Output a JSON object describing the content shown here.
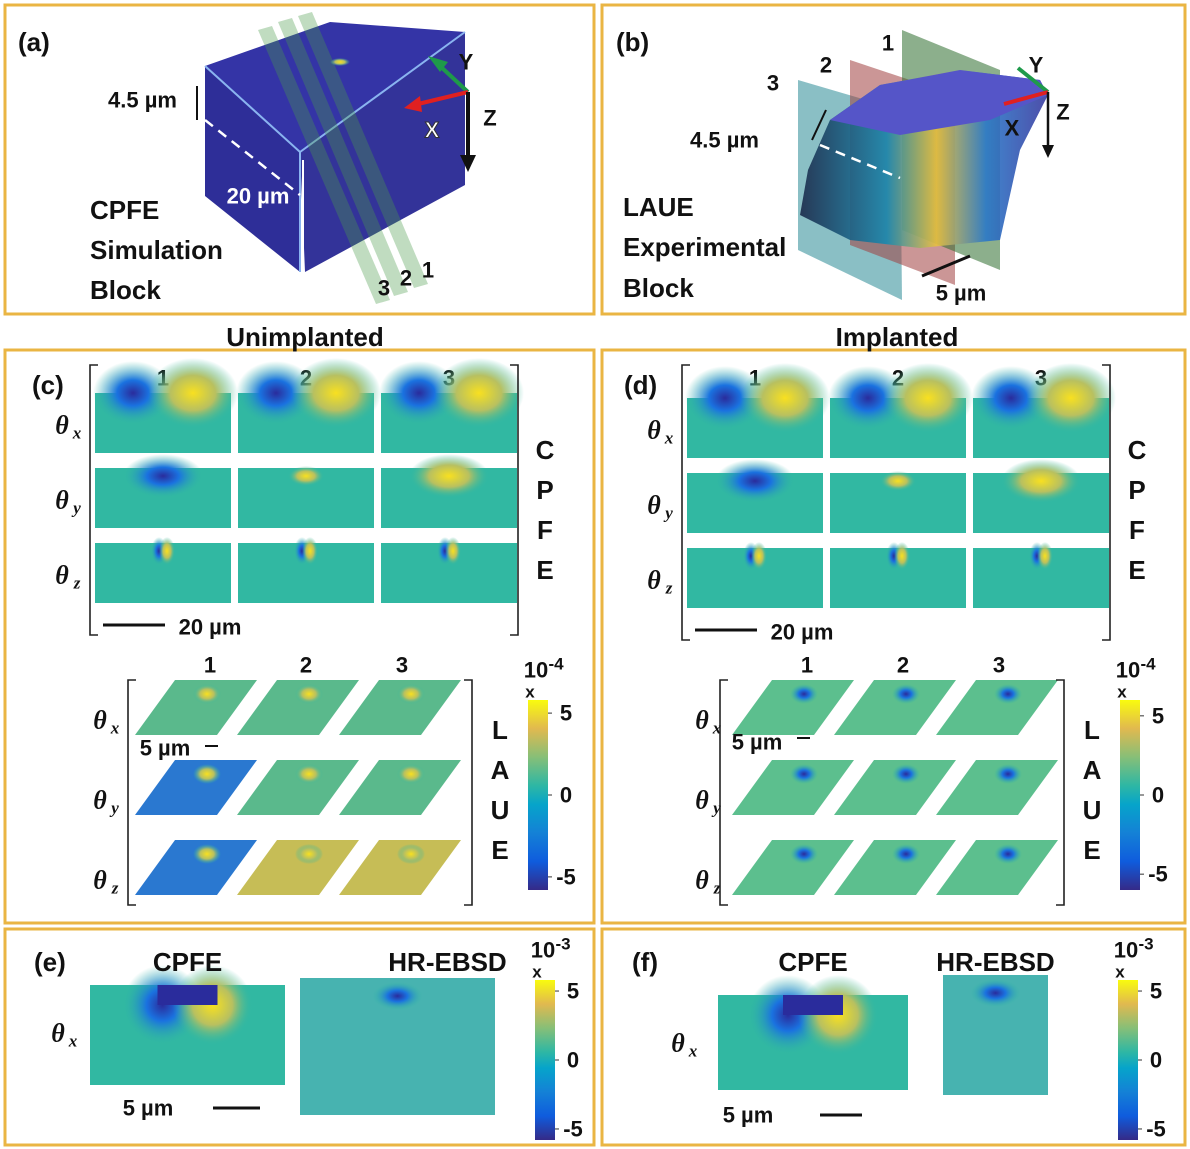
{
  "panels": {
    "a": {
      "label": "(a)",
      "thickness": "4.5 µm",
      "depth": "20 µm",
      "title_lines": [
        "CPFE",
        "Simulation",
        "Block"
      ],
      "axes": [
        "X",
        "Y",
        "Z"
      ],
      "planes": [
        "1",
        "2",
        "3"
      ]
    },
    "b": {
      "label": "(b)",
      "thickness": "4.5 µm",
      "scale": "5 µm",
      "title_lines": [
        "LAUE",
        "Experimental",
        "Block"
      ],
      "axes": [
        "X",
        "Y",
        "Z"
      ],
      "planes": [
        "1",
        "2",
        "3"
      ]
    },
    "c": {
      "label": "(c)",
      "header": "Unimplanted",
      "cpfe": {
        "columns": [
          "1",
          "2",
          "3"
        ],
        "rows": [
          {
            "symbol": "θ",
            "sub": "x"
          },
          {
            "symbol": "θ",
            "sub": "y"
          },
          {
            "symbol": "θ",
            "sub": "z"
          }
        ],
        "side": [
          "C",
          "P",
          "F",
          "E"
        ],
        "scale": "20 µm"
      },
      "laue": {
        "columns": [
          "1",
          "2",
          "3"
        ],
        "rows": [
          {
            "symbol": "θ",
            "sub": "x"
          },
          {
            "symbol": "θ",
            "sub": "y"
          },
          {
            "symbol": "θ",
            "sub": "z"
          }
        ],
        "side": [
          "L",
          "A",
          "U",
          "E"
        ],
        "scale": "5 µm",
        "colorbar": {
          "base": "10",
          "exp": "-4",
          "times": "x",
          "clim": [
            -5.8,
            5.8
          ],
          "ticks": [
            5,
            0,
            -5
          ]
        }
      }
    },
    "d": {
      "label": "(d)",
      "header": "Implanted",
      "cpfe": {
        "columns": [
          "1",
          "2",
          "3"
        ],
        "rows": [
          {
            "symbol": "θ",
            "sub": "x"
          },
          {
            "symbol": "θ",
            "sub": "y"
          },
          {
            "symbol": "θ",
            "sub": "z"
          }
        ],
        "side": [
          "C",
          "P",
          "F",
          "E"
        ],
        "scale": "20 µm"
      },
      "laue": {
        "columns": [
          "1",
          "2",
          "3"
        ],
        "rows": [
          {
            "symbol": "θ",
            "sub": "x"
          },
          {
            "symbol": "θ",
            "sub": "y"
          },
          {
            "symbol": "θ",
            "sub": "z"
          }
        ],
        "side": [
          "L",
          "A",
          "U",
          "E"
        ],
        "scale": "5 µm",
        "colorbar": {
          "base": "10",
          "exp": "-4",
          "times": "x",
          "clim": [
            -6,
            6
          ],
          "ticks": [
            5,
            0,
            -5
          ]
        }
      }
    },
    "e": {
      "label": "(e)",
      "columns": [
        "CPFE",
        "HR-EBSD"
      ],
      "row": {
        "symbol": "θ",
        "sub": "x"
      },
      "scale": "5 µm",
      "colorbar": {
        "base": "10",
        "exp": "-3",
        "times": "x",
        "clim": [
          -5.8,
          5.8
        ],
        "ticks": [
          5,
          0,
          -5
        ]
      }
    },
    "f": {
      "label": "(f)",
      "columns": [
        "CPFE",
        "HR-EBSD"
      ],
      "row": {
        "symbol": "θ",
        "sub": "x"
      },
      "scale": "5 µm",
      "colorbar": {
        "base": "10",
        "exp": "-3",
        "times": "x",
        "clim": [
          -5.8,
          5.8
        ],
        "ticks": [
          5,
          0,
          -5
        ]
      }
    }
  }
}
